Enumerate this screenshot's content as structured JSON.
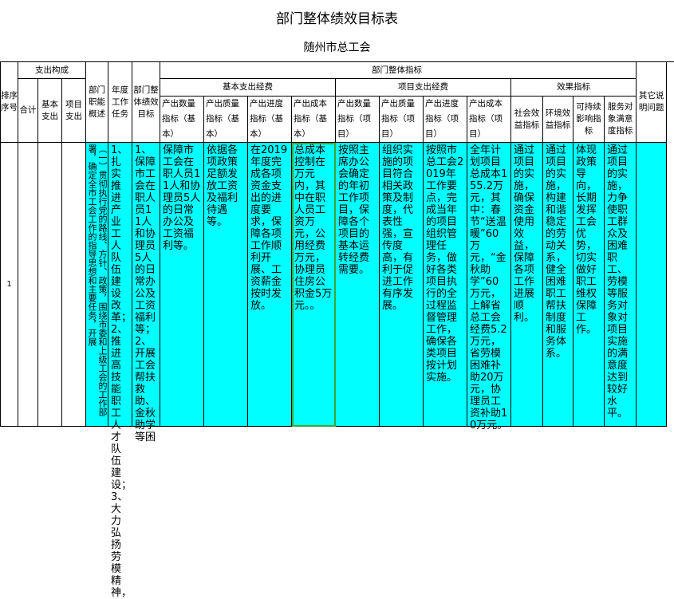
{
  "title": "部门整体绩效目标表",
  "subtitle": "随州市总工会",
  "header": {
    "seq": "排序序号",
    "composition": "支出构成",
    "total": "合计",
    "basic": "基本支出",
    "project": "项目支出",
    "function": "部门职能概述",
    "annual_tasks": "年度工作任务",
    "overall_goal": "部门整体绩效目标",
    "overall_indicators": "部门整体指标",
    "other": "其它说明问题",
    "basic_funds": "基本支出经费",
    "project_funds": "项目支出经费",
    "effect": "效果指标",
    "indicators": [
      "产出数量指标（基本）",
      "产出质量指标（基本）",
      "产出进度指标（基本）",
      "产出成本指标（基本）",
      "产出数量指标（项目）",
      "产出质量指标（项目）",
      "产出进度指标（项目）",
      "产出成本指标（项目）",
      "社会效益指标",
      "环境效益指标",
      "可持续影响指标",
      "服务对象满意度指标"
    ]
  },
  "row": {
    "seq": "1",
    "total": "",
    "basic": "",
    "project": "",
    "function": "（一）贯彻执行党的路线、方针、政策，围绕市委和上级工会的工作部署，确定全市工会工作的指导思想和主要任务，开展",
    "annual_tasks": "1、扎实推进产业工人队伍建设改革；2、推进高技能职工人才队伍建设；3、大力弘扬劳模精神，",
    "overall_goal": "1、保障市工会在职人员11人和协理员5人的日常办公及工资福利等；2、开展工会帮扶救助、金秋助学等困",
    "cells": [
      "保障市工会在职人员11人和协理员5人的日常办公及工资福利等。",
      "依据各项政策足额发放工资及福利待遇等。",
      "在2019年度完成各项资金支出的进度要求，保障各项工作顺利开展、工资薪金按时发放。",
      "总成本控制在万元内，其中在职人员工资万元，公用经费万元，协理员住房公积金5万元。。",
      "按照主席办公会确定的年初工作项目，保障各个项目的基本运转经费需要。",
      "组织实施的项目符合相关政策及制度，代表性强，宣传度高，有利于促进工作有序发展。",
      "按照市总工会2019年工作要点，完成当年的项目组织管理任务，做好各类项目执行的全过程监督管理工作，确保各类项目按计划实施。",
      "全年计划项目总成本155.2万元，其中：春节“送温暖”60万元，“金秋助学”60万元，上解省总工会经费5.2万元，省劳模困难补助20万元，协理员工资补助10万元。",
      "通过项目的实施，确保资金使用效益，保障各项工作进展顺利。",
      "通过项目的实施，构建和谐稳定的劳动关系，健全困难职工帮扶制度和服务体系。",
      "体现政策导向，长期发挥工会优势，切实做好职工维权保障工作。",
      "通过项目的实施，力争使职工群众及困难职工、劳模等服务对象对项目实施的满意度达到较好水平。",
      ""
    ]
  },
  "colors": {
    "cell_fill": "#00ffff",
    "selection": "#3aa63a",
    "border": "#000000"
  }
}
